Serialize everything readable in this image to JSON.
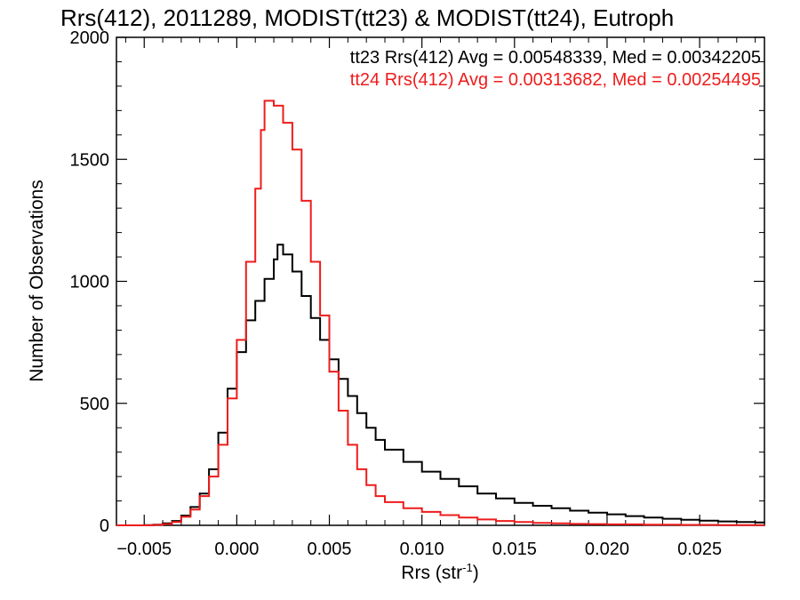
{
  "chart_data": {
    "type": "line",
    "title": "Rrs(412), 2011289, MODIST(tt23) & MODIST(tt24), Eutroph",
    "xlabel": "Rrs (str",
    "xlabel_sup": "-1",
    "xlabel_close": ")",
    "ylabel": "Number of Observations",
    "xlim": [
      -0.0065,
      0.0285
    ],
    "ylim": [
      0,
      2000
    ],
    "grid": false,
    "legend_position": "top-right",
    "xticks": [
      -0.005,
      0.0,
      0.005,
      0.01,
      0.015,
      0.02,
      0.025
    ],
    "xtick_labels": [
      "−0.005",
      "0.000",
      "0.005",
      "0.010",
      "0.015",
      "0.020",
      "0.025"
    ],
    "yticks": [
      0,
      500,
      1000,
      1500,
      2000
    ],
    "ytick_labels": [
      "0",
      "500",
      "1000",
      "1500",
      "2000"
    ],
    "series": [
      {
        "name": "tt23",
        "legend": "tt23 Rrs(412) Avg = 0.00548339, Med = 0.00342205",
        "color": "#000000",
        "points": [
          [
            -0.0065,
            0
          ],
          [
            -0.006,
            0
          ],
          [
            -0.005,
            1
          ],
          [
            -0.0045,
            3
          ],
          [
            -0.004,
            8
          ],
          [
            -0.0035,
            18
          ],
          [
            -0.003,
            40
          ],
          [
            -0.0025,
            75
          ],
          [
            -0.002,
            130
          ],
          [
            -0.0015,
            230
          ],
          [
            -0.001,
            380
          ],
          [
            -0.0005,
            560
          ],
          [
            0.0,
            710
          ],
          [
            0.0005,
            840
          ],
          [
            0.001,
            920
          ],
          [
            0.0015,
            1010
          ],
          [
            0.002,
            1090
          ],
          [
            0.0022,
            1150
          ],
          [
            0.0025,
            1110
          ],
          [
            0.003,
            1040
          ],
          [
            0.0035,
            940
          ],
          [
            0.004,
            850
          ],
          [
            0.0045,
            760
          ],
          [
            0.005,
            680
          ],
          [
            0.0055,
            600
          ],
          [
            0.006,
            530
          ],
          [
            0.0065,
            460
          ],
          [
            0.007,
            400
          ],
          [
            0.0075,
            350
          ],
          [
            0.008,
            310
          ],
          [
            0.009,
            260
          ],
          [
            0.01,
            220
          ],
          [
            0.011,
            190
          ],
          [
            0.012,
            160
          ],
          [
            0.013,
            130
          ],
          [
            0.014,
            110
          ],
          [
            0.015,
            92
          ],
          [
            0.016,
            80
          ],
          [
            0.017,
            70
          ],
          [
            0.018,
            60
          ],
          [
            0.019,
            52
          ],
          [
            0.02,
            45
          ],
          [
            0.021,
            38
          ],
          [
            0.022,
            32
          ],
          [
            0.023,
            27
          ],
          [
            0.024,
            23
          ],
          [
            0.025,
            19
          ],
          [
            0.026,
            16
          ],
          [
            0.027,
            14
          ],
          [
            0.028,
            12
          ],
          [
            0.0285,
            10
          ]
        ]
      },
      {
        "name": "tt24",
        "legend": "tt24 Rrs(412) Avg = 0.00313682, Med = 0.00254495",
        "color": "#ee1c1c",
        "points": [
          [
            -0.0065,
            0
          ],
          [
            -0.005,
            0
          ],
          [
            -0.0045,
            2
          ],
          [
            -0.004,
            5
          ],
          [
            -0.0035,
            14
          ],
          [
            -0.003,
            35
          ],
          [
            -0.0025,
            65
          ],
          [
            -0.002,
            120
          ],
          [
            -0.0015,
            200
          ],
          [
            -0.001,
            330
          ],
          [
            -0.0005,
            520
          ],
          [
            0.0,
            760
          ],
          [
            0.0005,
            1080
          ],
          [
            0.001,
            1380
          ],
          [
            0.0013,
            1620
          ],
          [
            0.0015,
            1740
          ],
          [
            0.002,
            1720
          ],
          [
            0.0025,
            1650
          ],
          [
            0.003,
            1540
          ],
          [
            0.0035,
            1330
          ],
          [
            0.004,
            1080
          ],
          [
            0.0045,
            860
          ],
          [
            0.005,
            630
          ],
          [
            0.0055,
            470
          ],
          [
            0.006,
            330
          ],
          [
            0.0065,
            230
          ],
          [
            0.007,
            165
          ],
          [
            0.0075,
            120
          ],
          [
            0.008,
            95
          ],
          [
            0.009,
            70
          ],
          [
            0.01,
            55
          ],
          [
            0.011,
            42
          ],
          [
            0.012,
            32
          ],
          [
            0.013,
            24
          ],
          [
            0.014,
            18
          ],
          [
            0.015,
            14
          ],
          [
            0.016,
            10
          ],
          [
            0.017,
            8
          ],
          [
            0.018,
            6
          ],
          [
            0.019,
            5
          ],
          [
            0.02,
            4
          ],
          [
            0.022,
            3
          ],
          [
            0.024,
            2
          ],
          [
            0.026,
            1
          ],
          [
            0.0285,
            1
          ]
        ]
      }
    ]
  }
}
